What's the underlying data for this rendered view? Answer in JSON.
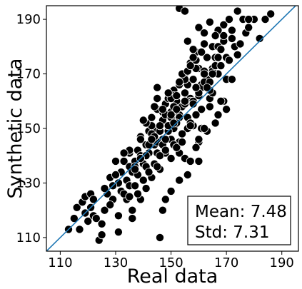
{
  "chart_data": {
    "type": "scatter",
    "xlabel": "Real data",
    "ylabel": "Synthetic data",
    "xlim": [
      105,
      196
    ],
    "ylim": [
      105,
      195
    ],
    "xticks": [
      110,
      130,
      150,
      170,
      190
    ],
    "yticks": [
      110,
      130,
      150,
      170,
      190
    ],
    "grid": false,
    "reference_line": {
      "label": "",
      "slope": 1,
      "intercept": 0,
      "color": "#1f77b4"
    },
    "marker_color": "#000000",
    "marker_edge_color": "#ffffff",
    "stats": {
      "mean_label": "Mean: 7.48",
      "std_label": "Std: 7.31",
      "placement": "bottom-right"
    },
    "series": [
      {
        "x": [
          113,
          115,
          116,
          117,
          118,
          119,
          119,
          120,
          121,
          121,
          122,
          122,
          124,
          125,
          126,
          127,
          128,
          129,
          130,
          131,
          131,
          132,
          132,
          133,
          134,
          134,
          135,
          135,
          135,
          136,
          136,
          137,
          137,
          138,
          138,
          139,
          139,
          139,
          140,
          140,
          141,
          141,
          142,
          142,
          143,
          143,
          144,
          144,
          144,
          145,
          145,
          146,
          146,
          147,
          147,
          148,
          148,
          149,
          149,
          150,
          150,
          151,
          151,
          152,
          152,
          153,
          153,
          154,
          154,
          155,
          155,
          156,
          156,
          157,
          157,
          158,
          158,
          159,
          160,
          160,
          161,
          161,
          162,
          163,
          163,
          164,
          165,
          165,
          166,
          167,
          167,
          168,
          169,
          169,
          170,
          171,
          172,
          173,
          174,
          175,
          176,
          177,
          178,
          180,
          182,
          184,
          186,
          123,
          126,
          128,
          130,
          133,
          135,
          137,
          139,
          141,
          143,
          145,
          147,
          149,
          151,
          153,
          155,
          157,
          159,
          161,
          163,
          165,
          167,
          169,
          171,
          141,
          143,
          145,
          147,
          149,
          151,
          153,
          155,
          157,
          159,
          146,
          148,
          150,
          152,
          154,
          156,
          158,
          160,
          162,
          164,
          144,
          148,
          150,
          152,
          154,
          156,
          158,
          160,
          162,
          164,
          166,
          168,
          170,
          172,
          153,
          155,
          157,
          159,
          161,
          163,
          165,
          167,
          169,
          140,
          142,
          144,
          146,
          148,
          150,
          152,
          154,
          156,
          158,
          160,
          162,
          164,
          166,
          168,
          131,
          135,
          137,
          139,
          141,
          143,
          145,
          147,
          149,
          151,
          153,
          155,
          157,
          159,
          161,
          145,
          147,
          149,
          151,
          153,
          155,
          157,
          159,
          161,
          163,
          165,
          167,
          125,
          129,
          133,
          150,
          158,
          166,
          174,
          138,
          145,
          152,
          160,
          168,
          136,
          142,
          148,
          154,
          162,
          170,
          153,
          160,
          167,
          155,
          162,
          146,
          150,
          156,
          164,
          172,
          178
        ],
        "y": [
          113,
          117,
          121,
          113,
          123,
          119,
          125,
          116,
          121,
          126,
          118,
          124,
          109,
          115,
          120,
          126,
          132,
          124,
          138,
          130,
          112,
          134,
          127,
          138,
          131,
          124,
          136,
          129,
          141,
          134,
          120,
          138,
          129,
          142,
          133,
          140,
          124,
          147,
          137,
          131,
          144,
          136,
          149,
          141,
          132,
          154,
          144,
          137,
          150,
          157,
          141,
          149,
          135,
          146,
          153,
          159,
          141,
          151,
          161,
          146,
          156,
          164,
          150,
          160,
          143,
          155,
          166,
          158,
          148,
          163,
          170,
          154,
          166,
          161,
          174,
          151,
          168,
          178,
          162,
          172,
          157,
          166,
          181,
          176,
          168,
          161,
          180,
          172,
          176,
          185,
          170,
          179,
          188,
          182,
          176,
          190,
          183,
          180,
          177,
          181,
          190,
          185,
          187,
          190,
          183,
          190,
          192,
          117,
          128,
          122,
          133,
          126,
          142,
          136,
          146,
          140,
          151,
          145,
          156,
          149,
          162,
          154,
          168,
          160,
          172,
          165,
          176,
          171,
          180,
          184,
          175,
          152,
          148,
          157,
          144,
          163,
          158,
          141,
          168,
          152,
          175,
          140,
          146,
          139,
          152,
          148,
          133,
          160,
          145,
          167,
          158,
          147,
          155,
          161,
          157,
          170,
          150,
          176,
          163,
          171,
          167,
          173,
          179,
          168,
          186,
          145,
          139,
          151,
          143,
          157,
          149,
          163,
          155,
          160,
          153,
          144,
          158,
          151,
          142,
          154,
          162,
          148,
          171,
          159,
          146,
          170,
          164,
          152,
          173,
          118,
          125,
          135,
          139,
          128,
          146,
          136,
          120,
          151,
          144,
          131,
          159,
          138,
          165,
          150,
          161,
          157,
          163,
          152,
          167,
          160,
          173,
          155,
          178,
          165,
          170,
          186,
          111,
          129,
          141,
          155,
          179,
          184,
          193,
          126,
          165,
          143,
          187,
          160,
          117,
          134,
          124,
          145,
          150,
          157,
          194,
          138,
          176,
          193,
          185,
          110,
          127,
          182,
          189,
          168,
          190
        ]
      }
    ]
  }
}
